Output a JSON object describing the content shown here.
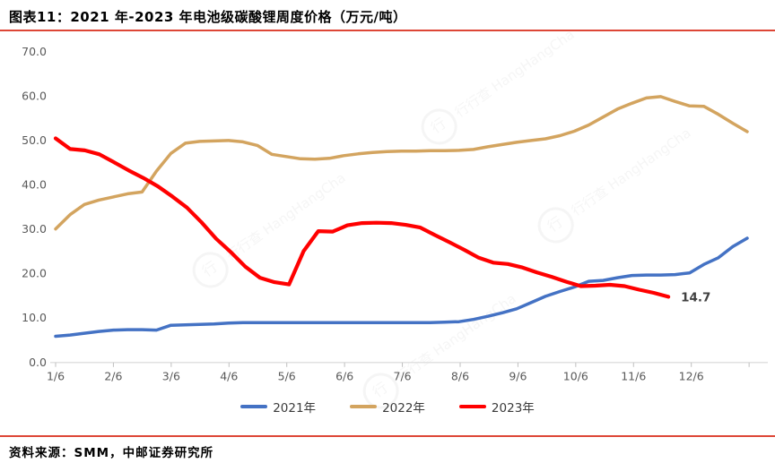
{
  "header": {
    "title": "图表11：2021 年-2023 年电池级碳酸锂周度价格（万元/吨）"
  },
  "footer": {
    "source": "资料来源：SMM，中邮证券研究所"
  },
  "watermark": {
    "cn": "行行查",
    "en": "HangHangCha",
    "logo_char": "行"
  },
  "annotation": {
    "last_value_label": "14.7"
  },
  "colors": {
    "accent_rule": "#DD4636",
    "axis_text": "#595959",
    "axis_line": "#D9D9D9",
    "tick_mark": "#BFBFBF",
    "value_label": "#404040",
    "series_2021": "#4472C4",
    "series_2022": "#D3A45F",
    "series_2023": "#FF0000"
  },
  "chart_data": {
    "type": "line",
    "title": "2021年-2023年电池级碳酸锂周度价格",
    "unit": "万元/吨",
    "ylim": [
      0,
      70
    ],
    "ytick_labels": [
      "0.0",
      "10.0",
      "20.0",
      "30.0",
      "40.0",
      "50.0",
      "60.0",
      "70.0"
    ],
    "xtick_labels": [
      "1/6",
      "2/6",
      "3/6",
      "4/6",
      "5/6",
      "6/6",
      "7/6",
      "8/6",
      "9/6",
      "10/6",
      "11/6",
      "12/6"
    ],
    "grid": false,
    "legend_position": "bottom",
    "series": [
      {
        "name": "2021年",
        "color": "#4472C4",
        "width": 3.5,
        "end_frac": 1.0,
        "values": [
          5.8,
          6.1,
          6.5,
          6.9,
          7.2,
          7.3,
          7.3,
          7.2,
          8.3,
          8.4,
          8.5,
          8.6,
          8.8,
          8.9,
          8.9,
          8.9,
          8.9,
          8.9,
          8.9,
          8.9,
          8.9,
          8.9,
          8.9,
          8.9,
          8.9,
          8.9,
          8.9,
          9.0,
          9.1,
          9.6,
          10.3,
          11.1,
          12.0,
          13.4,
          14.8,
          15.9,
          16.9,
          18.2,
          18.4,
          19.0,
          19.5,
          19.6,
          19.6,
          19.7,
          20.1,
          22.0,
          23.5,
          26.0,
          27.9
        ]
      },
      {
        "name": "2022年",
        "color": "#D3A45F",
        "width": 3.5,
        "end_frac": 1.0,
        "values": [
          30.0,
          33.2,
          35.5,
          36.5,
          37.2,
          37.9,
          38.3,
          43.0,
          47.0,
          49.3,
          49.7,
          49.8,
          49.9,
          49.6,
          48.8,
          46.8,
          46.3,
          45.8,
          45.7,
          45.9,
          46.5,
          46.9,
          47.2,
          47.4,
          47.5,
          47.5,
          47.6,
          47.6,
          47.7,
          47.9,
          48.5,
          49.0,
          49.5,
          49.9,
          50.3,
          51.0,
          52.0,
          53.4,
          55.2,
          57.0,
          58.3,
          59.5,
          59.8,
          58.7,
          57.7,
          57.6,
          55.8,
          53.8,
          51.9
        ]
      },
      {
        "name": "2023年",
        "color": "#FF0000",
        "width": 4.2,
        "end_frac": 0.886,
        "end_label": "14.7",
        "values": [
          50.4,
          48.0,
          47.7,
          46.8,
          45.0,
          43.2,
          41.5,
          39.6,
          37.3,
          34.8,
          31.5,
          27.8,
          24.8,
          21.5,
          19.0,
          18.0,
          17.5,
          25.0,
          29.5,
          29.4,
          30.8,
          31.3,
          31.4,
          31.3,
          30.9,
          30.3,
          28.6,
          27.0,
          25.3,
          23.5,
          22.4,
          22.1,
          21.3,
          20.2,
          19.2,
          18.1,
          17.1,
          17.2,
          17.4,
          17.1,
          16.3,
          15.6,
          14.7
        ]
      }
    ]
  }
}
